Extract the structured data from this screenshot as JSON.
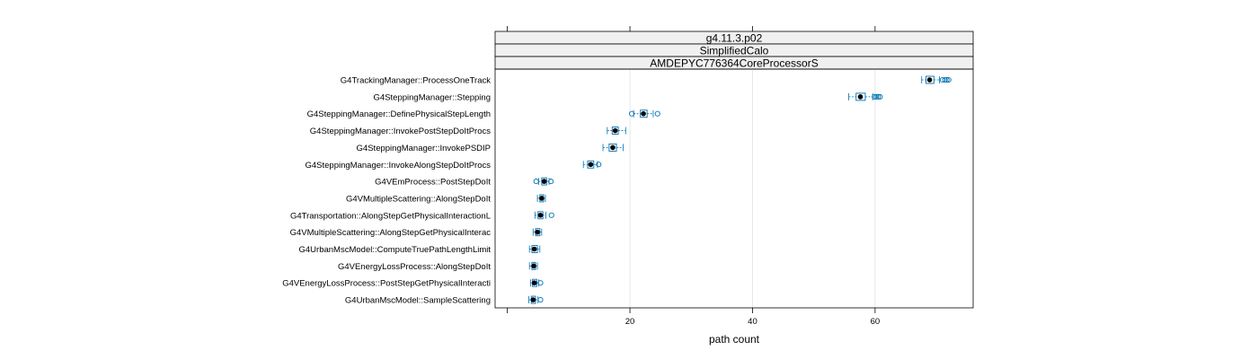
{
  "chart_data": {
    "type": "boxplot",
    "strips": [
      "g4.11.3.p02",
      "SimplifiedCalo",
      "AMDEPYC776364CoreProcessorS"
    ],
    "xlabel": "path count",
    "xlim": [
      -2,
      76
    ],
    "xticks": [
      20,
      40,
      60
    ],
    "grid": true,
    "colors": {
      "box": "#0072b2",
      "median": "#000000",
      "strip_bg": "#f0f0f0",
      "grid": "#e6e6e6"
    },
    "categories": [
      "G4TrackingManager::ProcessOneTrack",
      "G4SteppingManager::Stepping",
      "G4SteppingManager::DefinePhysicalStepLength",
      "G4SteppingManager::InvokePostStepDoItProcs",
      "G4SteppingManager::InvokePSDIP",
      "G4SteppingManager::InvokeAlongStepDoItProcs",
      "G4VEmProcess::PostStepDoIt",
      "G4VMultipleScattering::AlongStepDoIt",
      "G4Transportation::AlongStepGetPhysicalInteractionL",
      "G4VMultipleScattering::AlongStepGetPhysicalInterac",
      "G4UrbanMscModel::ComputeTruePathLengthLimit",
      "G4VEnergyLossProcess::AlongStepDoIt",
      "G4VEnergyLossProcess::PostStepGetPhysicalInteracti",
      "G4UrbanMscModel::SampleScattering"
    ],
    "boxes": [
      {
        "min": 67.6,
        "q1": 68.3,
        "median": 68.9,
        "q3": 69.6,
        "max": 70.5,
        "outliers": [
          71.0,
          71.4,
          71.7,
          72.0
        ]
      },
      {
        "min": 55.7,
        "q1": 56.9,
        "median": 57.6,
        "q3": 58.4,
        "max": 59.6,
        "outliers": [
          59.9,
          60.2,
          60.5,
          60.8
        ]
      },
      {
        "min": 20.6,
        "q1": 21.7,
        "median": 22.2,
        "q3": 22.8,
        "max": 23.8,
        "outliers": [
          20.3,
          24.5
        ]
      },
      {
        "min": 16.3,
        "q1": 17.1,
        "median": 17.6,
        "q3": 18.1,
        "max": 19.3,
        "outliers": []
      },
      {
        "min": 15.6,
        "q1": 16.6,
        "median": 17.2,
        "q3": 17.8,
        "max": 18.9,
        "outliers": []
      },
      {
        "min": 12.4,
        "q1": 13.1,
        "median": 13.6,
        "q3": 14.1,
        "max": 14.7,
        "outliers": [
          14.9
        ]
      },
      {
        "min": 5.1,
        "q1": 5.6,
        "median": 6.0,
        "q3": 6.4,
        "max": 6.8,
        "outliers": [
          4.7,
          7.1
        ]
      },
      {
        "min": 4.9,
        "q1": 5.3,
        "median": 5.6,
        "q3": 5.9,
        "max": 6.2,
        "outliers": []
      },
      {
        "min": 4.5,
        "q1": 5.0,
        "median": 5.4,
        "q3": 5.8,
        "max": 6.3,
        "outliers": [
          7.2
        ]
      },
      {
        "min": 4.2,
        "q1": 4.6,
        "median": 4.9,
        "q3": 5.3,
        "max": 5.6,
        "outliers": []
      },
      {
        "min": 3.6,
        "q1": 4.0,
        "median": 4.4,
        "q3": 4.9,
        "max": 5.3,
        "outliers": []
      },
      {
        "min": 3.6,
        "q1": 4.0,
        "median": 4.3,
        "q3": 4.6,
        "max": 4.9,
        "outliers": []
      },
      {
        "min": 3.8,
        "q1": 4.1,
        "median": 4.4,
        "q3": 4.8,
        "max": 5.1,
        "outliers": [
          5.4
        ]
      },
      {
        "min": 3.5,
        "q1": 3.9,
        "median": 4.2,
        "q3": 4.6,
        "max": 5.0,
        "outliers": [
          5.4
        ]
      }
    ]
  }
}
